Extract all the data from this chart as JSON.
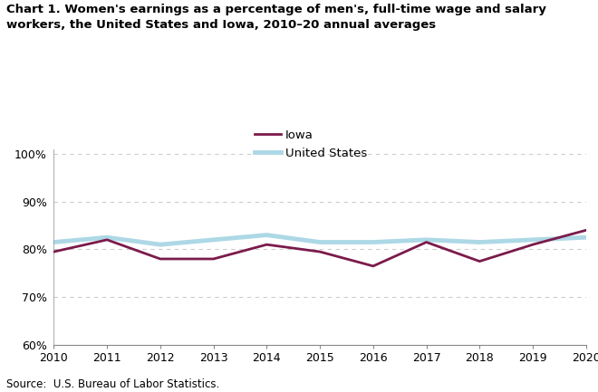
{
  "years": [
    2010,
    2011,
    2012,
    2013,
    2014,
    2015,
    2016,
    2017,
    2018,
    2019,
    2020
  ],
  "iowa": [
    79.5,
    82.0,
    78.0,
    78.0,
    81.0,
    79.5,
    76.5,
    81.5,
    77.5,
    81.0,
    84.0
  ],
  "us": [
    81.5,
    82.5,
    81.0,
    82.0,
    83.0,
    81.5,
    81.5,
    82.0,
    81.5,
    82.0,
    82.5
  ],
  "iowa_color": "#7b1a4b",
  "us_color": "#add8e6",
  "iowa_label": "Iowa",
  "us_label": "United States",
  "title": "Chart 1. Women's earnings as a percentage of men's, full-time wage and salary\nworkers, the United States and Iowa, 2010–20 annual averages",
  "source": "Source:  U.S. Bureau of Labor Statistics.",
  "ylim": [
    60,
    101
  ],
  "yticks": [
    60,
    70,
    80,
    90,
    100
  ],
  "ytick_labels": [
    "60%",
    "70%",
    "80%",
    "90%",
    "100%"
  ],
  "us_linewidth": 3.5,
  "iowa_linewidth": 2.0,
  "grid_color": "#cccccc",
  "grid_linestyle": "--",
  "background_color": "#ffffff"
}
